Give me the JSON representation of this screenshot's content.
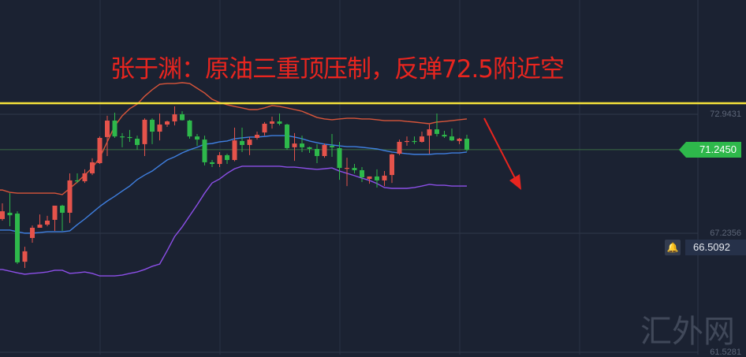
{
  "headline": "张于渊：原油三重顶压制，反弹72.5附近空",
  "watermark": "汇外网",
  "current_price_label": "71.2450",
  "alert_price_label": "66.5092",
  "colors": {
    "background": "#1b2232",
    "up": "#e5534b",
    "down": "#2eb84b",
    "upper_band": "#d9553a",
    "middle_band": "#3f7fe0",
    "lower_band": "#8c4fe8",
    "resistance": "#f5e23a",
    "arrow": "#e8251f"
  },
  "icons": {
    "alert": "bell-icon"
  },
  "chart_data": {
    "type": "candlestick",
    "convention": "red = up, green = down",
    "y_ticks": [
      "72.9431",
      "67.2356",
      "61.5281"
    ],
    "y_tick_values": [
      72.9431,
      67.2356,
      61.5281
    ],
    "current_price": 71.245,
    "alert_price": 66.5092,
    "resistance_line": 73.47,
    "grid": true,
    "ohlc": [
      [
        67.92,
        68.67,
        67.84,
        68.29
      ],
      [
        68.22,
        69.16,
        67.57,
        68.1
      ],
      [
        68.18,
        68.29,
        65.76,
        65.84
      ],
      [
        65.87,
        66.59,
        65.57,
        66.37
      ],
      [
        67.01,
        67.61,
        66.78,
        67.5
      ],
      [
        67.5,
        68.14,
        67.5,
        67.65
      ],
      [
        67.65,
        68.07,
        67.57,
        67.84
      ],
      [
        67.88,
        68.56,
        67.35,
        68.56
      ],
      [
        68.56,
        68.6,
        67.35,
        68.22
      ],
      [
        68.22,
        70.11,
        67.73,
        69.77
      ],
      [
        69.77,
        70.11,
        69.65,
        69.73
      ],
      [
        69.73,
        70.3,
        69.65,
        70.11
      ],
      [
        70.11,
        70.83,
        70.03,
        70.64
      ],
      [
        70.6,
        71.88,
        70.56,
        71.81
      ],
      [
        71.85,
        72.87,
        70.94,
        72.64
      ],
      [
        72.64,
        73.02,
        71.81,
        71.88
      ],
      [
        71.88,
        72.04,
        71.36,
        71.85
      ],
      [
        71.85,
        72.19,
        71.62,
        71.81
      ],
      [
        71.77,
        71.92,
        71.24,
        71.47
      ],
      [
        71.51,
        72.75,
        70.94,
        72.68
      ],
      [
        72.68,
        72.75,
        71.51,
        72.11
      ],
      [
        72.11,
        72.98,
        71.69,
        72.45
      ],
      [
        72.45,
        72.64,
        72.34,
        72.6
      ],
      [
        72.6,
        73.32,
        72.41,
        72.94
      ],
      [
        72.94,
        73.09,
        72.64,
        72.66
      ],
      [
        72.64,
        72.68,
        71.77,
        71.88
      ],
      [
        71.88,
        72.0,
        71.43,
        71.73
      ],
      [
        71.73,
        71.92,
        70.49,
        70.64
      ],
      [
        70.64,
        70.75,
        70.41,
        70.56
      ],
      [
        70.56,
        71.13,
        70.41,
        70.98
      ],
      [
        70.98,
        71.05,
        70.56,
        70.75
      ],
      [
        70.75,
        72.3,
        70.69,
        71.69
      ],
      [
        71.66,
        72.3,
        71.13,
        71.47
      ],
      [
        71.47,
        71.85,
        70.98,
        71.73
      ],
      [
        71.81,
        72.11,
        71.73,
        71.96
      ],
      [
        72.07,
        72.57,
        71.92,
        72.49
      ],
      [
        72.49,
        72.83,
        72.26,
        72.6
      ],
      [
        72.6,
        72.98,
        72.41,
        72.49
      ],
      [
        72.45,
        72.49,
        71.24,
        71.32
      ],
      [
        71.36,
        72.04,
        70.71,
        71.54
      ],
      [
        71.54,
        71.92,
        71.13,
        71.36
      ],
      [
        71.36,
        71.39,
        71.09,
        71.28
      ],
      [
        71.28,
        71.51,
        70.6,
        70.94
      ],
      [
        70.94,
        71.54,
        70.86,
        71.47
      ],
      [
        71.43,
        72.0,
        70.9,
        71.36
      ],
      [
        71.32,
        71.62,
        69.8,
        70.37
      ],
      [
        70.35,
        70.86,
        69.5,
        70.37
      ],
      [
        70.37,
        70.56,
        70.11,
        70.26
      ],
      [
        70.26,
        70.41,
        69.69,
        69.92
      ],
      [
        69.84,
        69.96,
        69.61,
        69.96
      ],
      [
        69.96,
        70.3,
        69.43,
        69.77
      ],
      [
        69.77,
        70.22,
        69.5,
        70.0
      ],
      [
        70.03,
        71.05,
        69.65,
        71.02
      ],
      [
        71.05,
        71.73,
        70.98,
        71.62
      ],
      [
        71.62,
        71.88,
        71.43,
        71.66
      ],
      [
        71.66,
        71.88,
        71.51,
        71.62
      ],
      [
        71.62,
        72.11,
        71.58,
        71.88
      ],
      [
        71.92,
        72.45,
        71.05,
        72.22
      ],
      [
        72.22,
        72.98,
        71.88,
        72.0
      ],
      [
        71.96,
        72.15,
        71.81,
        71.88
      ],
      [
        71.88,
        72.26,
        71.66,
        71.69
      ],
      [
        71.66,
        71.81,
        71.51,
        71.77
      ],
      [
        71.77,
        71.96,
        71.17,
        71.24
      ]
    ],
    "bollinger_upper": [
      69.31,
      69.2,
      69.16,
      69.16,
      69.16,
      69.16,
      69.16,
      69.16,
      69.09,
      69.39,
      69.69,
      70.03,
      70.37,
      70.86,
      71.62,
      72.38,
      72.87,
      73.21,
      73.43,
      73.81,
      74.12,
      74.38,
      74.42,
      74.42,
      74.46,
      74.42,
      74.19,
      73.96,
      73.66,
      73.51,
      73.4,
      73.32,
      73.25,
      73.17,
      73.17,
      73.25,
      73.36,
      73.32,
      73.25,
      73.17,
      73.09,
      72.94,
      72.79,
      72.72,
      72.68,
      72.72,
      72.75,
      72.75,
      72.72,
      72.72,
      72.68,
      72.64,
      72.64,
      72.64,
      72.6,
      72.57,
      72.53,
      72.49,
      72.57,
      72.6,
      72.64,
      72.68,
      72.72
    ],
    "bollinger_middle": [
      67.39,
      67.39,
      67.31,
      67.24,
      67.24,
      67.27,
      67.31,
      67.31,
      67.31,
      67.35,
      67.65,
      67.92,
      68.22,
      68.52,
      68.78,
      69.01,
      69.26,
      69.5,
      69.81,
      70.03,
      70.22,
      70.49,
      70.75,
      70.9,
      71.09,
      71.24,
      71.36,
      71.51,
      71.54,
      71.62,
      71.66,
      71.77,
      71.81,
      71.85,
      71.85,
      71.88,
      71.92,
      71.92,
      71.92,
      71.85,
      71.77,
      71.66,
      71.58,
      71.51,
      71.47,
      71.43,
      71.39,
      71.39,
      71.36,
      71.32,
      71.28,
      71.2,
      71.13,
      71.09,
      71.05,
      71.02,
      71.02,
      71.02,
      71.05,
      71.05,
      71.09,
      71.09,
      71.13
    ],
    "bollinger_lower": [
      65.5,
      65.42,
      65.34,
      65.27,
      65.31,
      65.34,
      65.38,
      65.46,
      65.46,
      65.31,
      65.34,
      65.38,
      65.31,
      65.19,
      65.19,
      65.19,
      65.23,
      65.31,
      65.38,
      65.5,
      65.65,
      65.76,
      66.4,
      67.08,
      67.54,
      68.07,
      68.6,
      69.16,
      69.65,
      69.84,
      70.11,
      70.33,
      70.45,
      70.45,
      70.45,
      70.45,
      70.45,
      70.45,
      70.41,
      70.41,
      70.37,
      70.33,
      70.3,
      70.33,
      70.37,
      70.22,
      70.11,
      70.0,
      69.88,
      69.77,
      69.62,
      69.43,
      69.39,
      69.39,
      69.39,
      69.43,
      69.5,
      69.58,
      69.54,
      69.54,
      69.5,
      69.5,
      69.5
    ]
  }
}
